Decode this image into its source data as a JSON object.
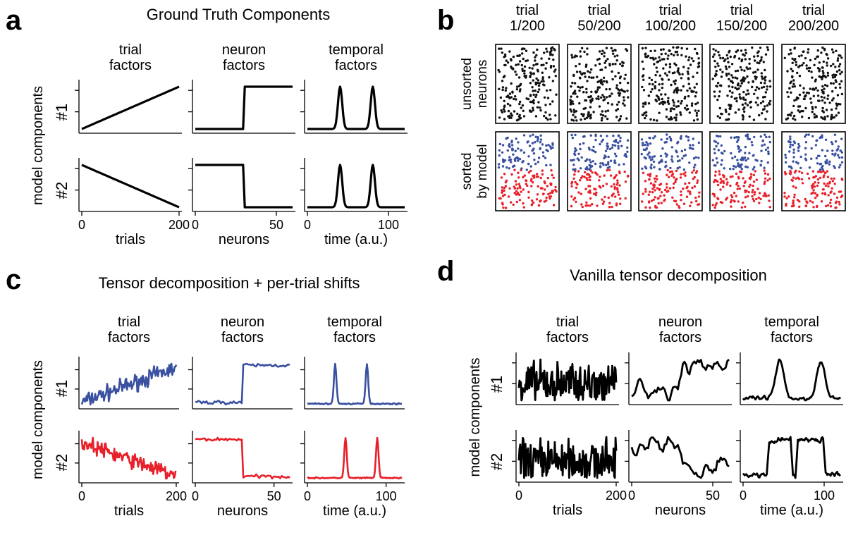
{
  "panels": {
    "a": {
      "letter": "a",
      "title": "Ground Truth Components"
    },
    "b": {
      "letter": "b",
      "trials": [
        "trial\n1/200",
        "trial\n50/200",
        "trial\n100/200",
        "trial\n150/200",
        "trial\n200/200"
      ],
      "row_labels": [
        "unsorted\nneurons",
        "sorted\nby model"
      ]
    },
    "c": {
      "letter": "c",
      "title": "Tensor decomposition + per-trial shifts"
    },
    "d": {
      "letter": "d",
      "title": "Vanilla tensor decomposition"
    }
  },
  "labels": {
    "col_titles": [
      "trial\nfactors",
      "neuron\nfactors",
      "temporal\nfactors"
    ],
    "row_names": [
      "#1",
      "#2"
    ],
    "ylabel": "model components",
    "xlabels": [
      "trials",
      "neurons",
      "time (a.u.)"
    ],
    "xticks": [
      [
        "0",
        "200"
      ],
      [
        "0",
        "50"
      ],
      [
        "0",
        "100"
      ]
    ]
  },
  "colors": {
    "black": "#000000",
    "blue": "#3a50a0",
    "red": "#e8202a"
  },
  "chart_data": [
    {
      "type": "line",
      "panel": "a",
      "xlim": [
        [
          0,
          200
        ],
        [
          0,
          60
        ],
        [
          0,
          120
        ]
      ],
      "series": [
        {
          "row": 1,
          "factor": "trial",
          "values": "linear increase 0 to 1 over trials 0-200"
        },
        {
          "row": 1,
          "factor": "neuron",
          "values": "step 0 to 1 at neuron 30"
        },
        {
          "row": 1,
          "factor": "temporal",
          "values": "two narrow peaks at t=40 and t=80"
        },
        {
          "row": 2,
          "factor": "trial",
          "values": "linear decrease 1 to 0 over trials 0-200"
        },
        {
          "row": 2,
          "factor": "neuron",
          "values": "step 1 to 0 at neuron 30"
        },
        {
          "row": 2,
          "factor": "temporal",
          "values": "two narrow peaks at t=40 and t=80"
        }
      ]
    },
    {
      "type": "scatter",
      "panel": "b",
      "description": "spike rasters for 5 trials; top unsorted (black), bottom sorted by model (blue neurons on top, red below)"
    },
    {
      "type": "line",
      "panel": "c",
      "xlim": [
        [
          0,
          200
        ],
        [
          0,
          60
        ],
        [
          0,
          120
        ]
      ],
      "series": [
        {
          "row": 1,
          "color": "blue",
          "factor": "trial",
          "values": "noisy increasing trend"
        },
        {
          "row": 1,
          "color": "blue",
          "factor": "neuron",
          "values": "noisy step up at neuron 30"
        },
        {
          "row": 1,
          "color": "blue",
          "factor": "temporal",
          "values": "two sharp peaks at t=35 and t=75"
        },
        {
          "row": 2,
          "color": "red",
          "factor": "trial",
          "values": "noisy decreasing trend"
        },
        {
          "row": 2,
          "color": "red",
          "factor": "neuron",
          "values": "noisy step down at neuron 30"
        },
        {
          "row": 2,
          "color": "red",
          "factor": "temporal",
          "values": "two sharp peaks at t=48 and t=88"
        }
      ]
    },
    {
      "type": "line",
      "panel": "d",
      "xlim": [
        [
          0,
          200
        ],
        [
          0,
          60
        ],
        [
          0,
          120
        ]
      ],
      "series": [
        {
          "row": 1,
          "factor": "trial",
          "values": "high-variance noise"
        },
        {
          "row": 1,
          "factor": "neuron",
          "values": "noisy, elevated after neuron 30"
        },
        {
          "row": 1,
          "factor": "temporal",
          "values": "two broad bumps near t=45 and t=95"
        },
        {
          "row": 2,
          "factor": "trial",
          "values": "high-variance noise"
        },
        {
          "row": 2,
          "factor": "neuron",
          "values": "noisy, decreasing"
        },
        {
          "row": 2,
          "factor": "temporal",
          "values": "broad plateaus between t=30 and t=100"
        }
      ]
    }
  ]
}
